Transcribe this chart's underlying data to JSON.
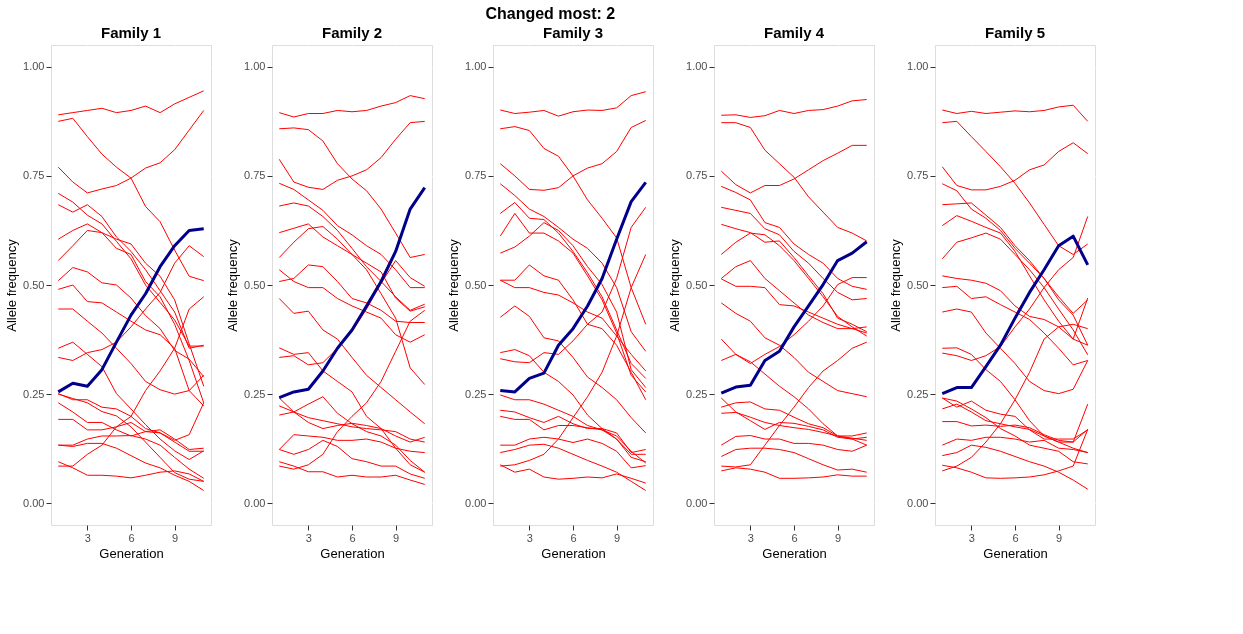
{
  "chart_data": [
    {
      "type": "line",
      "title": "Family 1",
      "annotations": [
        "Changed most: 2"
      ],
      "xlabel": "Generation",
      "ylabel": "Allele frequency",
      "x": [
        1,
        2,
        3,
        4,
        5,
        6,
        7,
        8,
        9,
        10,
        11
      ],
      "xlim": [
        0.5,
        11.5
      ],
      "xticks": [
        3,
        6,
        9
      ],
      "ylim": [
        -0.05,
        1.05
      ],
      "yticks": [
        {
          "value": 0,
          "label": "0.00"
        },
        {
          "value": 0.25,
          "label": "0.25"
        },
        {
          "value": 0.5,
          "label": "0.50"
        },
        {
          "value": 0.75,
          "label": "0.75"
        },
        {
          "value": 1,
          "label": "1.00"
        }
      ],
      "grid": true,
      "series": [
        {
          "color": "#ff0000",
          "values": [
            0.89,
            0.895,
            0.9,
            0.905,
            0.895,
            0.9,
            0.91,
            0.895,
            0.915,
            0.93,
            0.945
          ]
        },
        {
          "color": "#ff0000",
          "values": [
            0.875,
            0.882,
            0.84,
            0.8,
            0.77,
            0.745,
            0.68,
            0.645,
            0.58,
            0.52,
            0.51
          ]
        },
        {
          "color": "#ff0000",
          "values": [
            0.77,
            0.736,
            0.711,
            0.72,
            0.728,
            0.745,
            0.768,
            0.78,
            0.81,
            0.855,
            0.9
          ]
        },
        {
          "color": "#ff0000",
          "values": [
            0.71,
            0.69,
            0.66,
            0.64,
            0.6,
            0.56,
            0.5,
            0.46,
            0.42,
            0.36,
            0.36
          ]
        },
        {
          "color": "#ff0000",
          "values": [
            0.684,
            0.667,
            0.684,
            0.657,
            0.61,
            0.577,
            0.535,
            0.487,
            0.438,
            0.355,
            0.362
          ]
        },
        {
          "color": "#ff0000",
          "values": [
            0.605,
            0.625,
            0.64,
            0.62,
            0.605,
            0.594,
            0.55,
            0.52,
            0.466,
            0.365,
            0.268
          ]
        },
        {
          "color": "#ff0000",
          "values": [
            0.556,
            0.59,
            0.625,
            0.62,
            0.584,
            0.57,
            0.508,
            0.473,
            0.41,
            0.327,
            0.23
          ]
        },
        {
          "color": "#ff0000",
          "values": [
            0.51,
            0.54,
            0.53,
            0.505,
            0.5,
            0.47,
            0.43,
            0.4,
            0.35,
            0.33,
            0.29
          ]
        },
        {
          "color": "#ff0000",
          "values": [
            0.49,
            0.5,
            0.462,
            0.459,
            0.438,
            0.417,
            0.397,
            0.386,
            0.355,
            0.258,
            0.223
          ]
        },
        {
          "color": "#ff0000",
          "values": [
            0.445,
            0.445,
            0.417,
            0.39,
            0.355,
            0.32,
            0.279,
            0.26,
            0.25,
            0.258,
            0.293
          ]
        },
        {
          "color": "#ff0000",
          "values": [
            0.355,
            0.369,
            0.341,
            0.313,
            0.251,
            0.216,
            0.18,
            0.147,
            0.12,
            0.1,
            0.12
          ]
        },
        {
          "color": "#ff0000",
          "values": [
            0.334,
            0.327,
            0.345,
            0.352,
            0.369,
            0.404,
            0.445,
            0.483,
            0.55,
            0.59,
            0.565
          ]
        },
        {
          "color": "#ff0000",
          "values": [
            0.085,
            0.085,
            0.112,
            0.133,
            0.175,
            0.199,
            0.258,
            0.303,
            0.355,
            0.445,
            0.473
          ]
        },
        {
          "color": "#ff0000",
          "values": [
            0.251,
            0.237,
            0.237,
            0.22,
            0.216,
            0.199,
            0.171,
            0.161,
            0.14,
            0.119,
            0.119
          ]
        },
        {
          "color": "#ff0000",
          "values": [
            0.23,
            0.209,
            0.185,
            0.185,
            0.168,
            0.154,
            0.164,
            0.168,
            0.147,
            0.123,
            0.126
          ]
        },
        {
          "color": "#ff0000",
          "values": [
            0.192,
            0.192,
            0.168,
            0.168,
            0.175,
            0.185,
            0.164,
            0.161,
            0.144,
            0.157,
            0.23
          ]
        },
        {
          "color": "#ff0000",
          "values": [
            0.133,
            0.133,
            0.147,
            0.154,
            0.154,
            0.155,
            0.147,
            0.133,
            0.105,
            0.078,
            0.057
          ]
        },
        {
          "color": "#ff0000",
          "values": [
            0.133,
            0.13,
            0.137,
            0.137,
            0.126,
            0.109,
            0.092,
            0.081,
            0.064,
            0.05,
            0.029
          ]
        },
        {
          "color": "#ff0000",
          "values": [
            0.095,
            0.081,
            0.064,
            0.064,
            0.062,
            0.058,
            0.064,
            0.071,
            0.074,
            0.067,
            0.05
          ]
        },
        {
          "color": "#ff0000",
          "values": [
            0.25,
            0.24,
            0.23,
            0.21,
            0.2,
            0.175,
            0.14,
            0.105,
            0.07,
            0.055,
            0.05
          ]
        },
        {
          "color": "#00008b",
          "values": [
            0.255,
            0.275,
            0.268,
            0.306,
            0.369,
            0.431,
            0.48,
            0.542,
            0.59,
            0.625,
            0.629
          ]
        }
      ]
    },
    {
      "type": "line",
      "title": "Family 2",
      "xlabel": "Generation",
      "ylabel": "Allele frequency",
      "x": [
        1,
        2,
        3,
        4,
        5,
        6,
        7,
        8,
        9,
        10,
        11
      ],
      "xlim": [
        0.5,
        11.5
      ],
      "xticks": [
        3,
        6,
        9
      ],
      "ylim": [
        -0.05,
        1.05
      ],
      "yticks": [
        {
          "value": 0,
          "label": "0.00"
        },
        {
          "value": 0.25,
          "label": "0.25"
        },
        {
          "value": 0.5,
          "label": "0.50"
        },
        {
          "value": 0.75,
          "label": "0.75"
        },
        {
          "value": 1,
          "label": "1.00"
        }
      ],
      "grid": true,
      "series": [
        {
          "color": "#ff0000",
          "values": [
            0.895,
            0.885,
            0.893,
            0.893,
            0.9,
            0.897,
            0.9,
            0.91,
            0.918,
            0.934,
            0.927
          ]
        },
        {
          "color": "#ff0000",
          "values": [
            0.858,
            0.86,
            0.856,
            0.83,
            0.778,
            0.743,
            0.716,
            0.674,
            0.619,
            0.563,
            0.57
          ]
        },
        {
          "color": "#ff0000",
          "values": [
            0.788,
            0.736,
            0.724,
            0.719,
            0.74,
            0.75,
            0.764,
            0.792,
            0.834,
            0.872,
            0.875
          ]
        },
        {
          "color": "#ff0000",
          "values": [
            0.733,
            0.719,
            0.695,
            0.671,
            0.636,
            0.615,
            0.59,
            0.57,
            0.535,
            0.494,
            0.494
          ]
        },
        {
          "color": "#ff0000",
          "values": [
            0.681,
            0.688,
            0.681,
            0.657,
            0.625,
            0.584,
            0.542,
            0.508,
            0.473,
            0.442,
            0.456
          ]
        },
        {
          "color": "#ff0000",
          "values": [
            0.62,
            0.63,
            0.64,
            0.61,
            0.59,
            0.57,
            0.55,
            0.53,
            0.47,
            0.44,
            0.45
          ]
        },
        {
          "color": "#ff0000",
          "values": [
            0.563,
            0.598,
            0.629,
            0.634,
            0.605,
            0.57,
            0.535,
            0.48,
            0.424,
            0.31,
            0.272
          ]
        },
        {
          "color": "#ff0000",
          "values": [
            0.535,
            0.508,
            0.494,
            0.494,
            0.469,
            0.452,
            0.438,
            0.424,
            0.386,
            0.369,
            0.386
          ]
        },
        {
          "color": "#ff0000",
          "values": [
            0.508,
            0.515,
            0.546,
            0.542,
            0.508,
            0.469,
            0.459,
            0.442,
            0.417,
            0.414,
            0.414
          ]
        },
        {
          "color": "#ff0000",
          "values": [
            0.469,
            0.435,
            0.44,
            0.397,
            0.376,
            0.334,
            0.293,
            0.265,
            0.237,
            0.209,
            0.182
          ]
        },
        {
          "color": "#ff0000",
          "values": [
            0.356,
            0.341,
            0.345,
            0.303,
            0.279,
            0.255,
            0.199,
            0.171,
            0.126,
            0.088,
            0.071
          ]
        },
        {
          "color": "#ff0000",
          "values": [
            0.334,
            0.338,
            0.317,
            0.322,
            0.355,
            0.393,
            0.445,
            0.504,
            0.556,
            0.517,
            0.497
          ]
        },
        {
          "color": "#ff0000",
          "values": [
            0.085,
            0.078,
            0.088,
            0.112,
            0.164,
            0.199,
            0.23,
            0.279,
            0.348,
            0.417,
            0.442
          ]
        },
        {
          "color": "#ff0000",
          "values": [
            0.241,
            0.209,
            0.227,
            0.244,
            0.206,
            0.182,
            0.164,
            0.154,
            0.133,
            0.098,
            0.071
          ]
        },
        {
          "color": "#ff0000",
          "values": [
            0.223,
            0.209,
            0.196,
            0.189,
            0.182,
            0.175,
            0.171,
            0.168,
            0.164,
            0.147,
            0.14
          ]
        },
        {
          "color": "#ff0000",
          "values": [
            0.202,
            0.209,
            0.185,
            0.171,
            0.178,
            0.183,
            0.178,
            0.171,
            0.154,
            0.14,
            0.151
          ]
        },
        {
          "color": "#ff0000",
          "values": [
            0.123,
            0.157,
            0.154,
            0.151,
            0.144,
            0.144,
            0.147,
            0.14,
            0.126,
            0.119,
            0.116
          ]
        },
        {
          "color": "#ff0000",
          "values": [
            0.123,
            0.112,
            0.123,
            0.144,
            0.13,
            0.102,
            0.095,
            0.085,
            0.085,
            0.067,
            0.057
          ]
        },
        {
          "color": "#ff0000",
          "values": [
            0.095,
            0.085,
            0.072,
            0.072,
            0.06,
            0.064,
            0.06,
            0.06,
            0.064,
            0.053,
            0.043
          ]
        },
        {
          "color": "#00008b",
          "values": [
            0.242,
            0.255,
            0.261,
            0.303,
            0.355,
            0.397,
            0.452,
            0.508,
            0.577,
            0.674,
            0.723
          ]
        }
      ]
    },
    {
      "type": "line",
      "title": "Family 3",
      "xlabel": "Generation",
      "ylabel": "Allele frequency",
      "x": [
        1,
        2,
        3,
        4,
        5,
        6,
        7,
        8,
        9,
        10,
        11
      ],
      "xlim": [
        0.5,
        11.5
      ],
      "xticks": [
        3,
        6,
        9
      ],
      "ylim": [
        -0.05,
        1.05
      ],
      "yticks": [
        {
          "value": 0,
          "label": "0.00"
        },
        {
          "value": 0.25,
          "label": "0.25"
        },
        {
          "value": 0.5,
          "label": "0.50"
        },
        {
          "value": 0.75,
          "label": "0.75"
        },
        {
          "value": 1,
          "label": "1.00"
        }
      ],
      "grid": true,
      "series": [
        {
          "color": "#ff0000",
          "values": [
            0.901,
            0.893,
            0.896,
            0.9,
            0.887,
            0.897,
            0.901,
            0.9,
            0.906,
            0.934,
            0.943
          ]
        },
        {
          "color": "#ff0000",
          "values": [
            0.858,
            0.863,
            0.854,
            0.813,
            0.795,
            0.75,
            0.695,
            0.653,
            0.608,
            0.494,
            0.41
          ]
        },
        {
          "color": "#ff0000",
          "values": [
            0.778,
            0.75,
            0.719,
            0.717,
            0.723,
            0.75,
            0.768,
            0.778,
            0.806,
            0.861,
            0.877
          ]
        },
        {
          "color": "#ff0000",
          "values": [
            0.732,
            0.705,
            0.674,
            0.657,
            0.632,
            0.605,
            0.584,
            0.55,
            0.494,
            0.393,
            0.348
          ]
        },
        {
          "color": "#ff0000",
          "values": [
            0.664,
            0.689,
            0.653,
            0.65,
            0.619,
            0.577,
            0.528,
            0.473,
            0.397,
            0.32,
            0.286
          ]
        },
        {
          "color": "#ff0000",
          "values": [
            0.612,
            0.664,
            0.619,
            0.619,
            0.601,
            0.573,
            0.521,
            0.466,
            0.39,
            0.293,
            0.255
          ]
        },
        {
          "color": "#ff0000",
          "values": [
            0.573,
            0.587,
            0.612,
            0.643,
            0.625,
            0.59,
            0.542,
            0.501,
            0.438,
            0.306,
            0.265
          ]
        },
        {
          "color": "#ff0000",
          "values": [
            0.511,
            0.511,
            0.546,
            0.521,
            0.511,
            0.466,
            0.41,
            0.4,
            0.362,
            0.3,
            0.237
          ]
        },
        {
          "color": "#ff0000",
          "values": [
            0.511,
            0.494,
            0.494,
            0.483,
            0.477,
            0.459,
            0.438,
            0.424,
            0.383,
            0.341,
            0.303
          ]
        },
        {
          "color": "#ff0000",
          "values": [
            0.426,
            0.452,
            0.428,
            0.379,
            0.372,
            0.334,
            0.289,
            0.265,
            0.237,
            0.196,
            0.161
          ]
        },
        {
          "color": "#ff0000",
          "values": [
            0.345,
            0.352,
            0.338,
            0.3,
            0.279,
            0.248,
            0.202,
            0.171,
            0.147,
            0.105,
            0.095
          ]
        },
        {
          "color": "#ff0000",
          "values": [
            0.331,
            0.324,
            0.322,
            0.345,
            0.341,
            0.372,
            0.41,
            0.438,
            0.515,
            0.632,
            0.678
          ]
        },
        {
          "color": "#ff0000",
          "values": [
            0.085,
            0.088,
            0.098,
            0.112,
            0.147,
            0.196,
            0.244,
            0.3,
            0.383,
            0.494,
            0.57
          ]
        },
        {
          "color": "#ff0000",
          "values": [
            0.248,
            0.237,
            0.237,
            0.227,
            0.213,
            0.199,
            0.178,
            0.168,
            0.154,
            0.119,
            0.092
          ]
        },
        {
          "color": "#ff0000",
          "values": [
            0.213,
            0.209,
            0.196,
            0.185,
            0.199,
            0.182,
            0.171,
            0.171,
            0.161,
            0.116,
            0.123
          ]
        },
        {
          "color": "#ff0000",
          "values": [
            0.199,
            0.192,
            0.192,
            0.168,
            0.178,
            0.178,
            0.173,
            0.168,
            0.147,
            0.112,
            0.112
          ]
        },
        {
          "color": "#ff0000",
          "values": [
            0.133,
            0.133,
            0.147,
            0.151,
            0.147,
            0.139,
            0.147,
            0.137,
            0.119,
            0.081,
            0.086
          ]
        },
        {
          "color": "#ff0000",
          "values": [
            0.116,
            0.123,
            0.133,
            0.135,
            0.126,
            0.112,
            0.098,
            0.085,
            0.071,
            0.05,
            0.029
          ]
        },
        {
          "color": "#ff0000",
          "values": [
            0.088,
            0.071,
            0.078,
            0.06,
            0.055,
            0.057,
            0.06,
            0.058,
            0.067,
            0.057,
            0.046
          ]
        },
        {
          "color": "#00008b",
          "values": [
            0.258,
            0.255,
            0.286,
            0.298,
            0.362,
            0.4,
            0.452,
            0.515,
            0.605,
            0.691,
            0.735
          ]
        }
      ]
    },
    {
      "type": "line",
      "title": "Family 4",
      "xlabel": "Generation",
      "ylabel": "Allele frequency",
      "x": [
        1,
        2,
        3,
        4,
        5,
        6,
        7,
        8,
        9,
        10,
        11
      ],
      "xlim": [
        0.5,
        11.5
      ],
      "xticks": [
        3,
        6,
        9
      ],
      "ylim": [
        -0.05,
        1.05
      ],
      "yticks": [
        {
          "value": 0,
          "label": "0.00"
        },
        {
          "value": 0.25,
          "label": "0.25"
        },
        {
          "value": 0.5,
          "label": "0.50"
        },
        {
          "value": 0.75,
          "label": "0.75"
        },
        {
          "value": 1,
          "label": "1.00"
        }
      ],
      "grid": true,
      "series": [
        {
          "color": "#ff0000",
          "values": [
            0.889,
            0.89,
            0.884,
            0.888,
            0.9,
            0.893,
            0.9,
            0.902,
            0.91,
            0.922,
            0.925
          ]
        },
        {
          "color": "#ff0000",
          "values": [
            0.872,
            0.872,
            0.861,
            0.809,
            0.778,
            0.747,
            0.702,
            0.667,
            0.632,
            0.619,
            0.601
          ]
        },
        {
          "color": "#ff0000",
          "values": [
            0.761,
            0.73,
            0.711,
            0.728,
            0.728,
            0.743,
            0.764,
            0.785,
            0.802,
            0.82,
            0.82
          ]
        },
        {
          "color": "#ff0000",
          "values": [
            0.726,
            0.712,
            0.695,
            0.643,
            0.632,
            0.594,
            0.57,
            0.55,
            0.515,
            0.497,
            0.49
          ]
        },
        {
          "color": "#ff0000",
          "values": [
            0.678,
            0.671,
            0.664,
            0.629,
            0.615,
            0.577,
            0.55,
            0.515,
            0.483,
            0.466,
            0.469
          ]
        },
        {
          "color": "#ff0000",
          "values": [
            0.639,
            0.629,
            0.62,
            0.598,
            0.601,
            0.563,
            0.521,
            0.48,
            0.424,
            0.41,
            0.393
          ]
        },
        {
          "color": "#ff0000",
          "values": [
            0.57,
            0.598,
            0.619,
            0.615,
            0.59,
            0.556,
            0.515,
            0.473,
            0.428,
            0.404,
            0.383
          ]
        },
        {
          "color": "#ff0000",
          "values": [
            0.515,
            0.542,
            0.556,
            0.515,
            0.487,
            0.459,
            0.431,
            0.414,
            0.4,
            0.4,
            0.404
          ]
        },
        {
          "color": "#ff0000",
          "values": [
            0.514,
            0.497,
            0.497,
            0.494,
            0.455,
            0.452,
            0.438,
            0.424,
            0.41,
            0.4,
            0.39
          ]
        },
        {
          "color": "#ff0000",
          "values": [
            0.459,
            0.435,
            0.417,
            0.379,
            0.362,
            0.334,
            0.3,
            0.279,
            0.258,
            0.251,
            0.244
          ]
        },
        {
          "color": "#ff0000",
          "values": [
            0.376,
            0.341,
            0.324,
            0.296,
            0.268,
            0.244,
            0.216,
            0.182,
            0.154,
            0.147,
            0.133
          ]
        },
        {
          "color": "#ff0000",
          "values": [
            0.327,
            0.341,
            0.32,
            0.341,
            0.359,
            0.386,
            0.417,
            0.452,
            0.501,
            0.517,
            0.517
          ]
        },
        {
          "color": "#ff0000",
          "values": [
            0.085,
            0.083,
            0.088,
            0.133,
            0.178,
            0.22,
            0.265,
            0.303,
            0.327,
            0.355,
            0.369
          ]
        },
        {
          "color": "#ff0000",
          "values": [
            0.241,
            0.209,
            0.189,
            0.169,
            0.185,
            0.183,
            0.176,
            0.168,
            0.151,
            0.147,
            0.151
          ]
        },
        {
          "color": "#ff0000",
          "values": [
            0.22,
            0.23,
            0.232,
            0.216,
            0.213,
            0.197,
            0.182,
            0.173,
            0.154,
            0.149,
            0.144
          ]
        },
        {
          "color": "#ff0000",
          "values": [
            0.206,
            0.208,
            0.197,
            0.185,
            0.178,
            0.173,
            0.169,
            0.162,
            0.154,
            0.154,
            0.161
          ]
        },
        {
          "color": "#ff0000",
          "values": [
            0.133,
            0.153,
            0.155,
            0.147,
            0.147,
            0.137,
            0.137,
            0.133,
            0.123,
            0.119,
            0.133
          ]
        },
        {
          "color": "#ff0000",
          "values": [
            0.107,
            0.123,
            0.126,
            0.126,
            0.123,
            0.116,
            0.102,
            0.088,
            0.076,
            0.078,
            0.071
          ]
        },
        {
          "color": "#ff0000",
          "values": [
            0.074,
            0.081,
            0.078,
            0.071,
            0.057,
            0.057,
            0.058,
            0.06,
            0.065,
            0.062,
            0.062
          ]
        },
        {
          "color": "#00008b",
          "values": [
            0.252,
            0.266,
            0.27,
            0.327,
            0.348,
            0.404,
            0.452,
            0.501,
            0.556,
            0.573,
            0.599
          ]
        }
      ]
    },
    {
      "type": "line",
      "title": "Family 5",
      "xlabel": "Generation",
      "ylabel": "Allele frequency",
      "x": [
        1,
        2,
        3,
        4,
        5,
        6,
        7,
        8,
        9,
        10,
        11
      ],
      "xlim": [
        0.5,
        11.5
      ],
      "xticks": [
        3,
        6,
        9
      ],
      "ylim": [
        -0.05,
        1.05
      ],
      "yticks": [
        {
          "value": 0,
          "label": "0.00"
        },
        {
          "value": 0.25,
          "label": "0.25"
        },
        {
          "value": 0.5,
          "label": "0.50"
        },
        {
          "value": 0.75,
          "label": "0.75"
        },
        {
          "value": 1,
          "label": "1.00"
        }
      ],
      "grid": true,
      "series": [
        {
          "color": "#ff0000",
          "values": [
            0.901,
            0.893,
            0.898,
            0.893,
            0.896,
            0.899,
            0.897,
            0.9,
            0.908,
            0.912,
            0.875
          ]
        },
        {
          "color": "#ff0000",
          "values": [
            0.872,
            0.875,
            0.84,
            0.806,
            0.771,
            0.733,
            0.688,
            0.639,
            0.59,
            0.57,
            0.594
          ]
        },
        {
          "color": "#ff0000",
          "values": [
            0.771,
            0.728,
            0.718,
            0.718,
            0.726,
            0.74,
            0.764,
            0.775,
            0.806,
            0.826,
            0.801
          ]
        },
        {
          "color": "#ff0000",
          "values": [
            0.732,
            0.716,
            0.674,
            0.653,
            0.625,
            0.584,
            0.55,
            0.515,
            0.473,
            0.435,
            0.466
          ]
        },
        {
          "color": "#ff0000",
          "values": [
            0.684,
            0.686,
            0.688,
            0.66,
            0.632,
            0.59,
            0.556,
            0.515,
            0.466,
            0.431,
            0.362
          ]
        },
        {
          "color": "#ff0000",
          "values": [
            0.636,
            0.659,
            0.646,
            0.632,
            0.619,
            0.577,
            0.521,
            0.466,
            0.417,
            0.376,
            0.362
          ]
        },
        {
          "color": "#ff0000",
          "values": [
            0.56,
            0.598,
            0.608,
            0.619,
            0.605,
            0.57,
            0.535,
            0.494,
            0.445,
            0.397,
            0.34
          ]
        },
        {
          "color": "#ff0000",
          "values": [
            0.521,
            0.515,
            0.511,
            0.504,
            0.487,
            0.452,
            0.428,
            0.421,
            0.404,
            0.376,
            0.47
          ]
        },
        {
          "color": "#ff0000",
          "values": [
            0.494,
            0.497,
            0.469,
            0.473,
            0.455,
            0.438,
            0.421,
            0.39,
            0.355,
            0.317,
            0.327
          ]
        },
        {
          "color": "#ff0000",
          "values": [
            0.438,
            0.445,
            0.438,
            0.39,
            0.355,
            0.32,
            0.279,
            0.258,
            0.251,
            0.261,
            0.327
          ]
        },
        {
          "color": "#ff0000",
          "values": [
            0.355,
            0.356,
            0.341,
            0.306,
            0.279,
            0.237,
            0.189,
            0.154,
            0.14,
            0.14,
            0.227
          ]
        },
        {
          "color": "#ff0000",
          "values": [
            0.344,
            0.338,
            0.327,
            0.338,
            0.359,
            0.404,
            0.445,
            0.494,
            0.535,
            0.563,
            0.657
          ]
        },
        {
          "color": "#ff0000",
          "values": [
            0.074,
            0.085,
            0.105,
            0.14,
            0.182,
            0.237,
            0.3,
            0.376,
            0.404,
            0.41,
            0.4
          ]
        },
        {
          "color": "#ff0000",
          "values": [
            0.241,
            0.22,
            0.234,
            0.213,
            0.204,
            0.199,
            0.168,
            0.147,
            0.147,
            0.147,
            0.168
          ]
        },
        {
          "color": "#ff0000",
          "values": [
            0.216,
            0.227,
            0.209,
            0.189,
            0.182,
            0.175,
            0.169,
            0.154,
            0.14,
            0.126,
            0.116
          ]
        },
        {
          "color": "#ff0000",
          "values": [
            0.187,
            0.187,
            0.177,
            0.179,
            0.176,
            0.179,
            0.173,
            0.157,
            0.144,
            0.14,
            0.169
          ]
        },
        {
          "color": "#ff0000",
          "values": [
            0.133,
            0.147,
            0.144,
            0.151,
            0.151,
            0.147,
            0.14,
            0.144,
            0.126,
            0.123,
            0.116
          ]
        },
        {
          "color": "#ff0000",
          "values": [
            0.109,
            0.116,
            0.133,
            0.128,
            0.119,
            0.107,
            0.095,
            0.085,
            0.071,
            0.053,
            0.032
          ]
        },
        {
          "color": "#ff0000",
          "values": [
            0.087,
            0.081,
            0.071,
            0.058,
            0.057,
            0.058,
            0.06,
            0.065,
            0.074,
            0.085,
            0.169
          ]
        },
        {
          "color": "#ff0000",
          "values": [
            0.241,
            0.234,
            0.216,
            0.196,
            0.171,
            0.154,
            0.133,
            0.126,
            0.119,
            0.095,
            0.09
          ]
        },
        {
          "color": "#00008b",
          "values": [
            0.251,
            0.265,
            0.265,
            0.313,
            0.362,
            0.424,
            0.483,
            0.535,
            0.59,
            0.612,
            0.546
          ]
        }
      ]
    }
  ]
}
